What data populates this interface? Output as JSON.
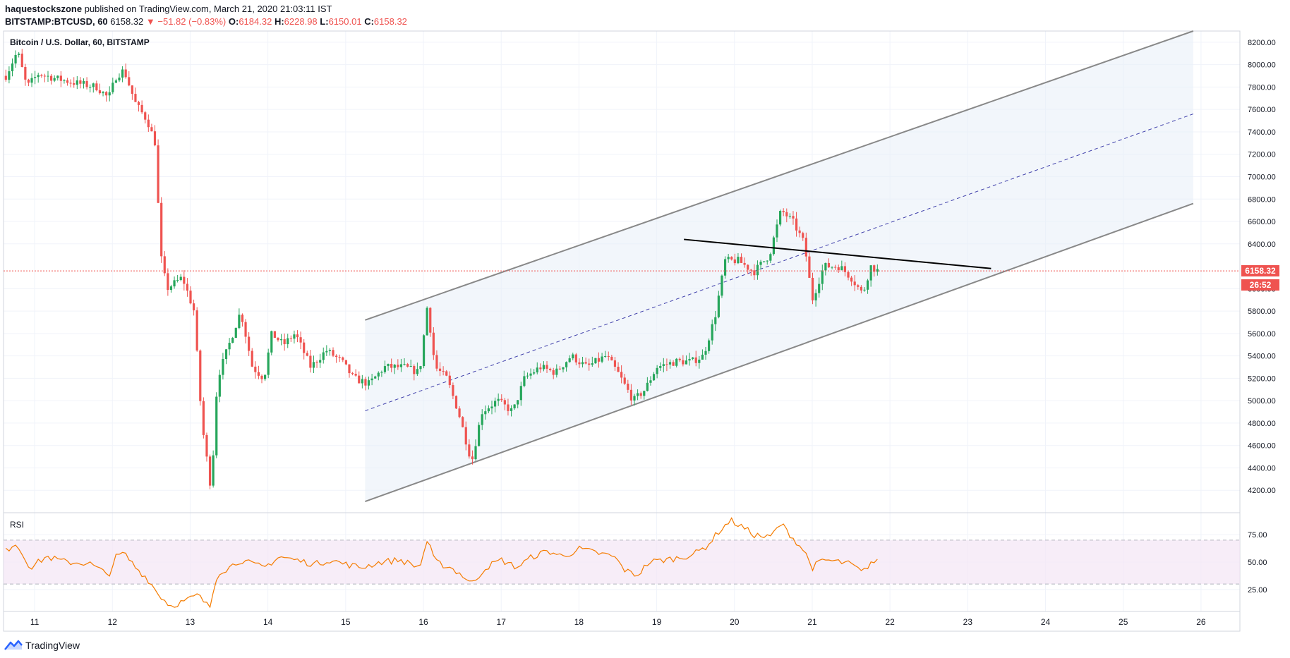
{
  "header": {
    "publisher": "haquestockszone",
    "published_text": "published on TradingView.com, March 21, 2020 21:03:11 IST",
    "symbol": "BITSTAMP:BTCUSD, 60",
    "last": "6158.32",
    "change": "▼ −51.82 (−0.83%)",
    "open_label": "O:",
    "open": "6184.32",
    "high_label": "H:",
    "high": "6228.98",
    "low_label": "L:",
    "low": "6150.01",
    "close_label": "C:",
    "close": "6158.32"
  },
  "footer": {
    "brand": "TradingView"
  },
  "colors": {
    "up": "#26a65b",
    "down": "#ef5350",
    "rsi": "#f57c00",
    "channel": "#888888",
    "price_line": "#ef5350",
    "trendline": "#000000"
  },
  "chart_data": [
    {
      "type": "candlestick",
      "title": "Bitcoin / U.S. Dollar, 60, BITSTAMP",
      "x_ticks": [
        "11",
        "12",
        "13",
        "14",
        "15",
        "16",
        "17",
        "18",
        "19",
        "20",
        "21",
        "22",
        "23",
        "24",
        "25",
        "26"
      ],
      "y_ticks": [
        "8200.00",
        "8000.00",
        "7800.00",
        "7600.00",
        "7400.00",
        "7200.00",
        "7000.00",
        "6800.00",
        "6600.00",
        "6400.00",
        "6000.00",
        "5800.00",
        "5600.00",
        "5400.00",
        "5200.00",
        "5000.00",
        "4800.00",
        "4600.00",
        "4400.00",
        "4200.00"
      ],
      "ylim": [
        4000,
        8300
      ],
      "xlim": [
        10.6,
        26.5
      ],
      "last_price_label": "6158.32",
      "countdown_label": "26:52",
      "last_price": 6158.32,
      "price_path": [
        [
          10.63,
          7900
        ],
        [
          10.78,
          8120
        ],
        [
          10.9,
          7800
        ],
        [
          11.05,
          7920
        ],
        [
          11.25,
          7880
        ],
        [
          11.5,
          7840
        ],
        [
          11.8,
          7800
        ],
        [
          11.95,
          7700
        ],
        [
          12.05,
          7900
        ],
        [
          12.15,
          7950
        ],
        [
          12.3,
          7650
        ],
        [
          12.45,
          7500
        ],
        [
          12.55,
          7300
        ],
        [
          12.62,
          6300
        ],
        [
          12.7,
          6000
        ],
        [
          12.9,
          6100
        ],
        [
          13.05,
          5800
        ],
        [
          13.15,
          4800
        ],
        [
          13.27,
          4200
        ],
        [
          13.35,
          5200
        ],
        [
          13.5,
          5500
        ],
        [
          13.65,
          5800
        ],
        [
          13.8,
          5300
        ],
        [
          13.95,
          5200
        ],
        [
          14.05,
          5600
        ],
        [
          14.2,
          5500
        ],
        [
          14.35,
          5600
        ],
        [
          14.55,
          5300
        ],
        [
          14.75,
          5450
        ],
        [
          14.95,
          5350
        ],
        [
          15.1,
          5200
        ],
        [
          15.3,
          5150
        ],
        [
          15.5,
          5300
        ],
        [
          15.75,
          5300
        ],
        [
          15.95,
          5250
        ],
        [
          16.05,
          5850
        ],
        [
          16.15,
          5300
        ],
        [
          16.3,
          5200
        ],
        [
          16.45,
          4900
        ],
        [
          16.62,
          4450
        ],
        [
          16.75,
          4900
        ],
        [
          16.95,
          5000
        ],
        [
          17.15,
          4900
        ],
        [
          17.3,
          5200
        ],
        [
          17.5,
          5300
        ],
        [
          17.7,
          5250
        ],
        [
          17.9,
          5400
        ],
        [
          18.1,
          5300
        ],
        [
          18.35,
          5400
        ],
        [
          18.5,
          5250
        ],
        [
          18.7,
          5000
        ],
        [
          18.85,
          5100
        ],
        [
          19.0,
          5300
        ],
        [
          19.25,
          5350
        ],
        [
          19.45,
          5350
        ],
        [
          19.6,
          5400
        ],
        [
          19.75,
          5750
        ],
        [
          19.88,
          6250
        ],
        [
          20.05,
          6250
        ],
        [
          20.25,
          6150
        ],
        [
          20.45,
          6300
        ],
        [
          20.6,
          6700
        ],
        [
          20.75,
          6600
        ],
        [
          20.9,
          6400
        ],
        [
          21.0,
          5900
        ],
        [
          21.15,
          6200
        ],
        [
          21.35,
          6200
        ],
        [
          21.5,
          6100
        ],
        [
          21.65,
          5950
        ],
        [
          21.75,
          6200
        ],
        [
          21.85,
          6158
        ]
      ],
      "channel": {
        "upper": [
          [
            15.25,
            5720
          ],
          [
            25.9,
            8300
          ]
        ],
        "middle": [
          [
            15.25,
            4910
          ],
          [
            25.9,
            7560
          ]
        ],
        "lower": [
          [
            15.25,
            4100
          ],
          [
            25.9,
            6760
          ]
        ]
      },
      "trendline": [
        [
          19.35,
          6440
        ],
        [
          23.3,
          6180
        ]
      ]
    },
    {
      "type": "line",
      "title": "RSI",
      "y_ticks": [
        "75.00",
        "50.00",
        "25.00"
      ],
      "ylim": [
        5,
        95
      ],
      "band": [
        30,
        70
      ],
      "values": [
        [
          10.63,
          60
        ],
        [
          10.75,
          68
        ],
        [
          10.95,
          45
        ],
        [
          11.15,
          55
        ],
        [
          11.4,
          50
        ],
        [
          11.7,
          49
        ],
        [
          11.95,
          38
        ],
        [
          12.05,
          55
        ],
        [
          12.15,
          58
        ],
        [
          12.3,
          45
        ],
        [
          12.45,
          35
        ],
        [
          12.6,
          20
        ],
        [
          12.75,
          10
        ],
        [
          12.95,
          15
        ],
        [
          13.1,
          20
        ],
        [
          13.25,
          8
        ],
        [
          13.35,
          40
        ],
        [
          13.5,
          45
        ],
        [
          13.65,
          52
        ],
        [
          13.8,
          48
        ],
        [
          13.95,
          45
        ],
        [
          14.15,
          55
        ],
        [
          14.35,
          52
        ],
        [
          14.6,
          48
        ],
        [
          14.8,
          52
        ],
        [
          15.0,
          48
        ],
        [
          15.2,
          45
        ],
        [
          15.45,
          50
        ],
        [
          15.7,
          52
        ],
        [
          15.95,
          45
        ],
        [
          16.05,
          70
        ],
        [
          16.15,
          50
        ],
        [
          16.35,
          45
        ],
        [
          16.5,
          38
        ],
        [
          16.62,
          30
        ],
        [
          16.8,
          45
        ],
        [
          17.0,
          52
        ],
        [
          17.2,
          45
        ],
        [
          17.4,
          55
        ],
        [
          17.6,
          60
        ],
        [
          17.8,
          55
        ],
        [
          18.0,
          62
        ],
        [
          18.25,
          58
        ],
        [
          18.45,
          55
        ],
        [
          18.6,
          42
        ],
        [
          18.75,
          38
        ],
        [
          18.9,
          50
        ],
        [
          19.1,
          52
        ],
        [
          19.3,
          54
        ],
        [
          19.5,
          58
        ],
        [
          19.65,
          65
        ],
        [
          19.8,
          78
        ],
        [
          19.95,
          88
        ],
        [
          20.1,
          82
        ],
        [
          20.25,
          75
        ],
        [
          20.45,
          72
        ],
        [
          20.6,
          85
        ],
        [
          20.75,
          72
        ],
        [
          20.9,
          60
        ],
        [
          21.0,
          45
        ],
        [
          21.15,
          52
        ],
        [
          21.35,
          50
        ],
        [
          21.5,
          48
        ],
        [
          21.65,
          40
        ],
        [
          21.75,
          50
        ],
        [
          21.85,
          50
        ]
      ]
    }
  ]
}
